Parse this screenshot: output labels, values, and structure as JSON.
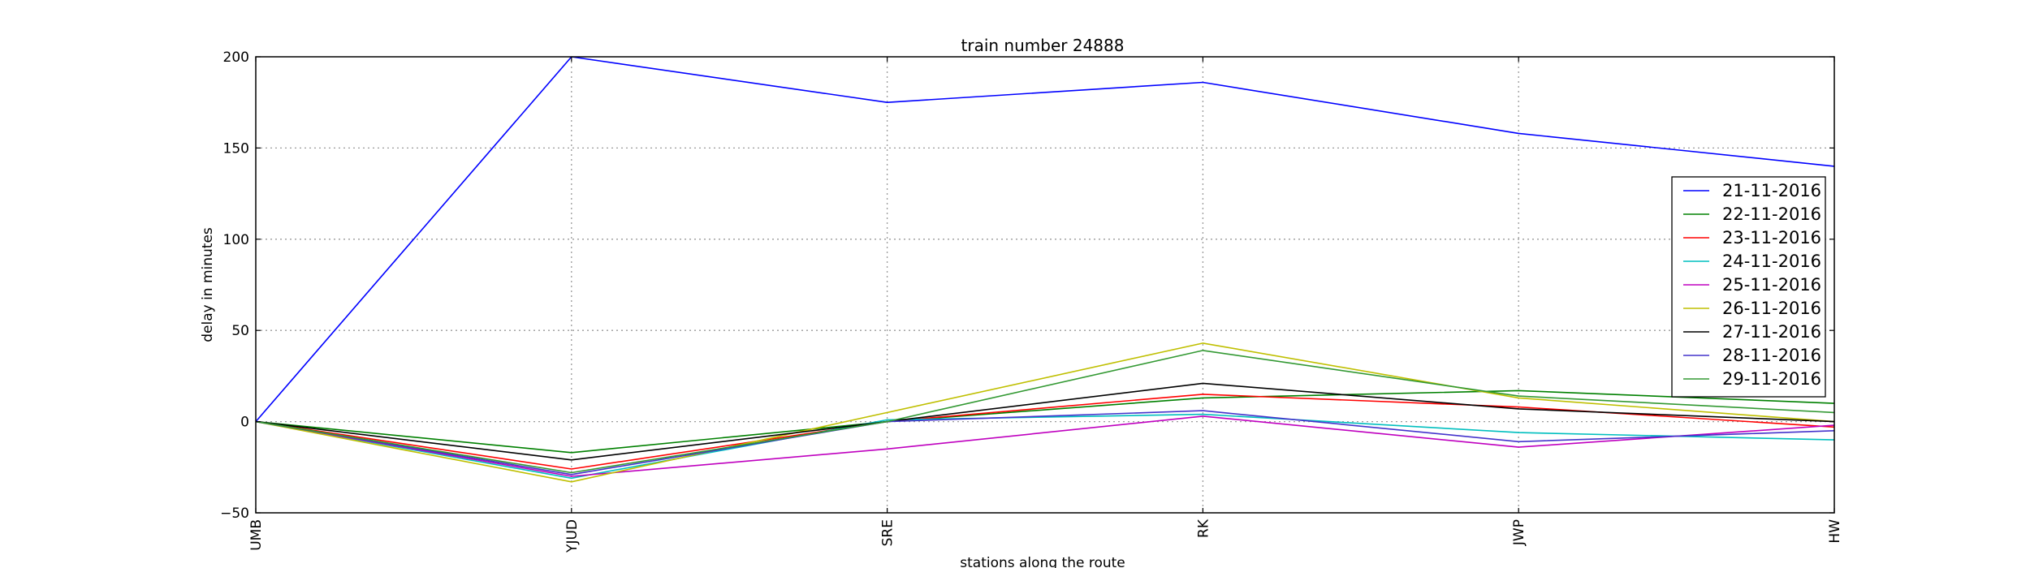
{
  "chart_data": {
    "type": "line",
    "title": "train number 24888",
    "xlabel": "stations along the route",
    "ylabel": "delay in minutes",
    "categories": [
      "UMB",
      "YJUD",
      "SRE",
      "RK",
      "JWP",
      "HW"
    ],
    "ylim": [
      -50,
      200
    ],
    "yticks": [
      "200",
      "150",
      "100",
      "50",
      "0",
      "−50"
    ],
    "ytick_values": [
      200,
      150,
      100,
      50,
      0,
      -50
    ],
    "grid": true,
    "legend_position": "center-right",
    "series": [
      {
        "name": "21-11-2016",
        "color": "#0000ff",
        "values": [
          0,
          200,
          175,
          186,
          158,
          140
        ]
      },
      {
        "name": "22-11-2016",
        "color": "#008000",
        "values": [
          0,
          -17,
          0,
          13,
          17,
          10
        ]
      },
      {
        "name": "23-11-2016",
        "color": "#ff0000",
        "values": [
          0,
          -26,
          0,
          15,
          8,
          -3
        ]
      },
      {
        "name": "24-11-2016",
        "color": "#00bfbf",
        "values": [
          0,
          -31,
          1,
          4,
          -6,
          -10
        ]
      },
      {
        "name": "25-11-2016",
        "color": "#bf00bf",
        "values": [
          0,
          -30,
          -15,
          3,
          -14,
          -2
        ]
      },
      {
        "name": "26-11-2016",
        "color": "#bfbf00",
        "values": [
          0,
          -33,
          5,
          43,
          13,
          0
        ]
      },
      {
        "name": "27-11-2016",
        "color": "#000000",
        "values": [
          0,
          -21,
          0,
          21,
          7,
          0
        ]
      },
      {
        "name": "28-11-2016",
        "color": "#4433cc",
        "values": [
          0,
          -29,
          0,
          6,
          -11,
          -5
        ]
      },
      {
        "name": "29-11-2016",
        "color": "#339933",
        "values": [
          0,
          -28,
          0,
          39,
          14,
          5
        ]
      }
    ]
  }
}
